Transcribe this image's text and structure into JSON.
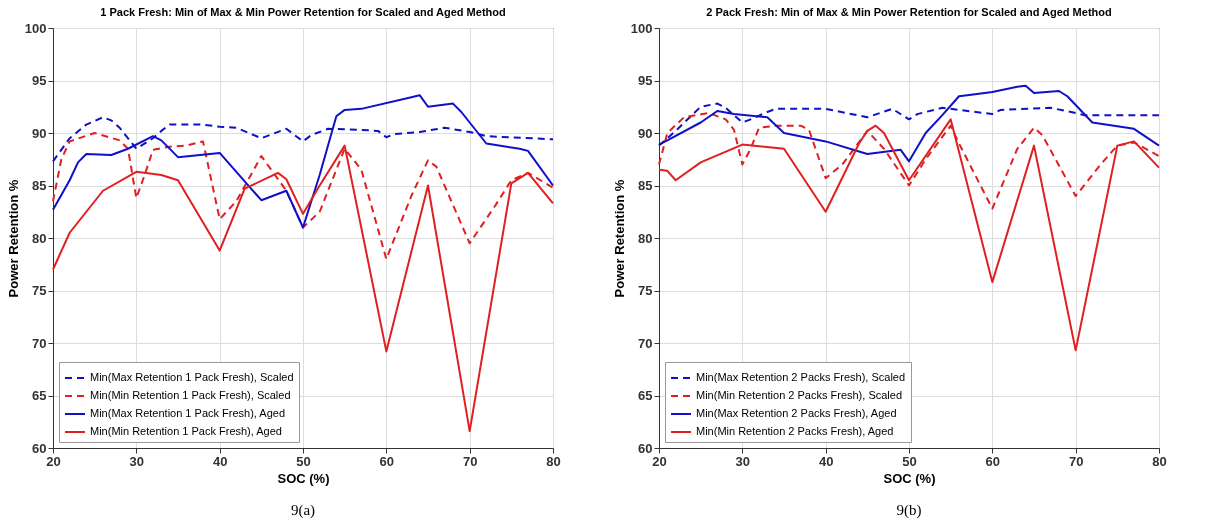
{
  "chart_data": [
    {
      "type": "line",
      "title": "1 Pack Fresh: Min of Max & Min Power Retention for Scaled and Aged Method",
      "xlabel": "SOC (%)",
      "ylabel": "Power Retention %",
      "xlim": [
        20,
        80
      ],
      "xticks": [
        20,
        30,
        40,
        50,
        60,
        70,
        80
      ],
      "ylim": [
        60,
        100
      ],
      "yticks": [
        60,
        65,
        70,
        75,
        80,
        85,
        90,
        95,
        100
      ],
      "grid": true,
      "legend": "bottom left",
      "annotations": [
        "9(a)"
      ],
      "series": [
        {
          "name": "Min(Max Retention 1 Pack Fresh), Scaled",
          "color": "#1010c8",
          "line_style": "dashed",
          "x": [
            20,
            22,
            24,
            26,
            27,
            28,
            30,
            32,
            33,
            34,
            38,
            40,
            42,
            45,
            48,
            50,
            51,
            53,
            57,
            59,
            60,
            61,
            64,
            67,
            70,
            72,
            80
          ],
          "values": [
            87.3,
            89.5,
            90.8,
            91.5,
            91.2,
            90.5,
            88.5,
            89.5,
            90.2,
            90.8,
            90.8,
            90.6,
            90.5,
            89.5,
            90.4,
            89.2,
            89.8,
            90.4,
            90.3,
            90.2,
            89.6,
            89.9,
            90.1,
            90.5,
            90.1,
            89.7,
            89.4
          ]
        },
        {
          "name": "Min(Min Retention 1 Pack Fresh), Scaled",
          "color": "#e02020",
          "line_style": "dashed",
          "x": [
            20,
            21,
            22,
            25,
            28,
            29,
            30,
            31,
            32,
            34,
            36,
            38,
            40,
            42,
            45,
            48,
            50,
            52,
            54,
            55,
            57,
            60,
            63,
            65,
            66,
            70,
            73,
            75,
            77,
            80
          ],
          "values": [
            83.5,
            87.5,
            89.2,
            90.0,
            89.3,
            88.5,
            83.8,
            86.0,
            88.4,
            88.7,
            88.8,
            89.2,
            81.8,
            83.5,
            87.8,
            84.5,
            81.0,
            82.5,
            86.5,
            88.5,
            86.5,
            78.0,
            84.0,
            87.4,
            86.8,
            79.5,
            83.0,
            85.5,
            86.2,
            84.8
          ]
        },
        {
          "name": "Min(Max Retention 1 Pack Fresh), Aged",
          "color": "#1010c8",
          "line_style": "solid",
          "x": [
            20,
            22,
            23,
            24,
            27,
            29,
            32,
            33,
            35,
            40,
            45,
            48,
            50,
            52,
            54,
            55,
            57,
            63,
            64,
            65,
            68,
            69,
            72,
            76,
            77,
            80
          ],
          "values": [
            82.7,
            85.5,
            87.2,
            88.0,
            87.9,
            88.5,
            89.7,
            89.3,
            87.7,
            88.1,
            83.6,
            84.5,
            81.0,
            86.0,
            91.6,
            92.2,
            92.3,
            93.4,
            93.6,
            92.5,
            92.8,
            92.0,
            89.0,
            88.5,
            88.3,
            85.0
          ]
        },
        {
          "name": "Min(Min Retention 1 Pack Fresh), Aged",
          "color": "#e02020",
          "line_style": "solid",
          "x": [
            20,
            22,
            26,
            30,
            33,
            35,
            40,
            43,
            47,
            48,
            50,
            52,
            55,
            60,
            65,
            70,
            75,
            77,
            80
          ],
          "values": [
            77.0,
            80.5,
            84.5,
            86.3,
            86.0,
            85.5,
            78.8,
            84.7,
            86.2,
            85.6,
            82.3,
            85.0,
            88.8,
            69.2,
            85.0,
            61.6,
            85.2,
            86.2,
            83.3
          ]
        }
      ]
    },
    {
      "type": "line",
      "title": "2 Pack Fresh: Min of Max & Min Power Retention for Scaled and Aged Method",
      "xlabel": "SOC (%)",
      "ylabel": "Power Retention %",
      "xlim": [
        20,
        80
      ],
      "xticks": [
        20,
        30,
        40,
        50,
        60,
        70,
        80
      ],
      "ylim": [
        60,
        100
      ],
      "yticks": [
        60,
        65,
        70,
        75,
        80,
        85,
        90,
        95,
        100
      ],
      "grid": true,
      "legend": "bottom left",
      "annotations": [
        "9(b)"
      ],
      "series": [
        {
          "name": "Min(Max Retention 2 Packs Fresh), Scaled",
          "color": "#1010c8",
          "line_style": "dashed",
          "x": [
            20,
            22,
            25,
            27,
            28,
            29,
            30,
            31,
            33,
            34,
            40,
            45,
            48,
            50,
            51,
            54,
            60,
            61,
            67,
            70,
            71,
            80
          ],
          "values": [
            88.8,
            90.2,
            92.5,
            92.8,
            92.4,
            91.7,
            91.0,
            91.3,
            92.0,
            92.3,
            92.3,
            91.5,
            92.3,
            91.3,
            91.8,
            92.4,
            91.8,
            92.2,
            92.4,
            91.9,
            91.7,
            91.7
          ]
        },
        {
          "name": "Min(Min Retention 2 Packs Fresh), Scaled",
          "color": "#e02020",
          "line_style": "dashed",
          "x": [
            20,
            21,
            23,
            26,
            28,
            29,
            30,
            31,
            32,
            34,
            37,
            38,
            40,
            42,
            45,
            47,
            50,
            52,
            55,
            56,
            60,
            63,
            65,
            66,
            70,
            73,
            75,
            77,
            80
          ],
          "values": [
            87.0,
            90.0,
            91.5,
            91.9,
            91.3,
            90.3,
            87.0,
            88.5,
            90.5,
            90.7,
            90.7,
            90.3,
            85.7,
            87.0,
            90.2,
            88.5,
            85.0,
            87.5,
            90.7,
            89.0,
            82.8,
            88.5,
            90.5,
            89.8,
            84.0,
            87.0,
            88.8,
            89.1,
            87.8
          ]
        },
        {
          "name": "Min(Max Retention 2 Packs Fresh), Aged",
          "color": "#1010c8",
          "line_style": "solid",
          "x": [
            20,
            21,
            25,
            27,
            29,
            33,
            35,
            40,
            45,
            49,
            50,
            52,
            54,
            56,
            57,
            60,
            63,
            64,
            65,
            68,
            69,
            72,
            77,
            80
          ],
          "values": [
            88.9,
            89.3,
            91.0,
            92.1,
            91.8,
            91.5,
            90.0,
            89.2,
            88.0,
            88.4,
            87.3,
            90.0,
            91.7,
            93.5,
            93.6,
            93.9,
            94.4,
            94.5,
            93.8,
            94.0,
            93.5,
            91.0,
            90.4,
            88.8
          ]
        },
        {
          "name": "Min(Min Retention 2 Packs Fresh), Aged",
          "color": "#e02020",
          "line_style": "solid",
          "x": [
            20,
            21,
            22,
            25,
            30,
            35,
            40,
            44,
            45,
            46,
            47,
            50,
            55,
            60,
            65,
            70,
            75,
            77,
            80
          ],
          "values": [
            86.5,
            86.4,
            85.5,
            87.2,
            88.9,
            88.5,
            82.5,
            89.0,
            90.2,
            90.7,
            90.0,
            85.5,
            91.3,
            75.8,
            88.8,
            69.3,
            88.8,
            89.2,
            86.7
          ]
        }
      ]
    }
  ]
}
